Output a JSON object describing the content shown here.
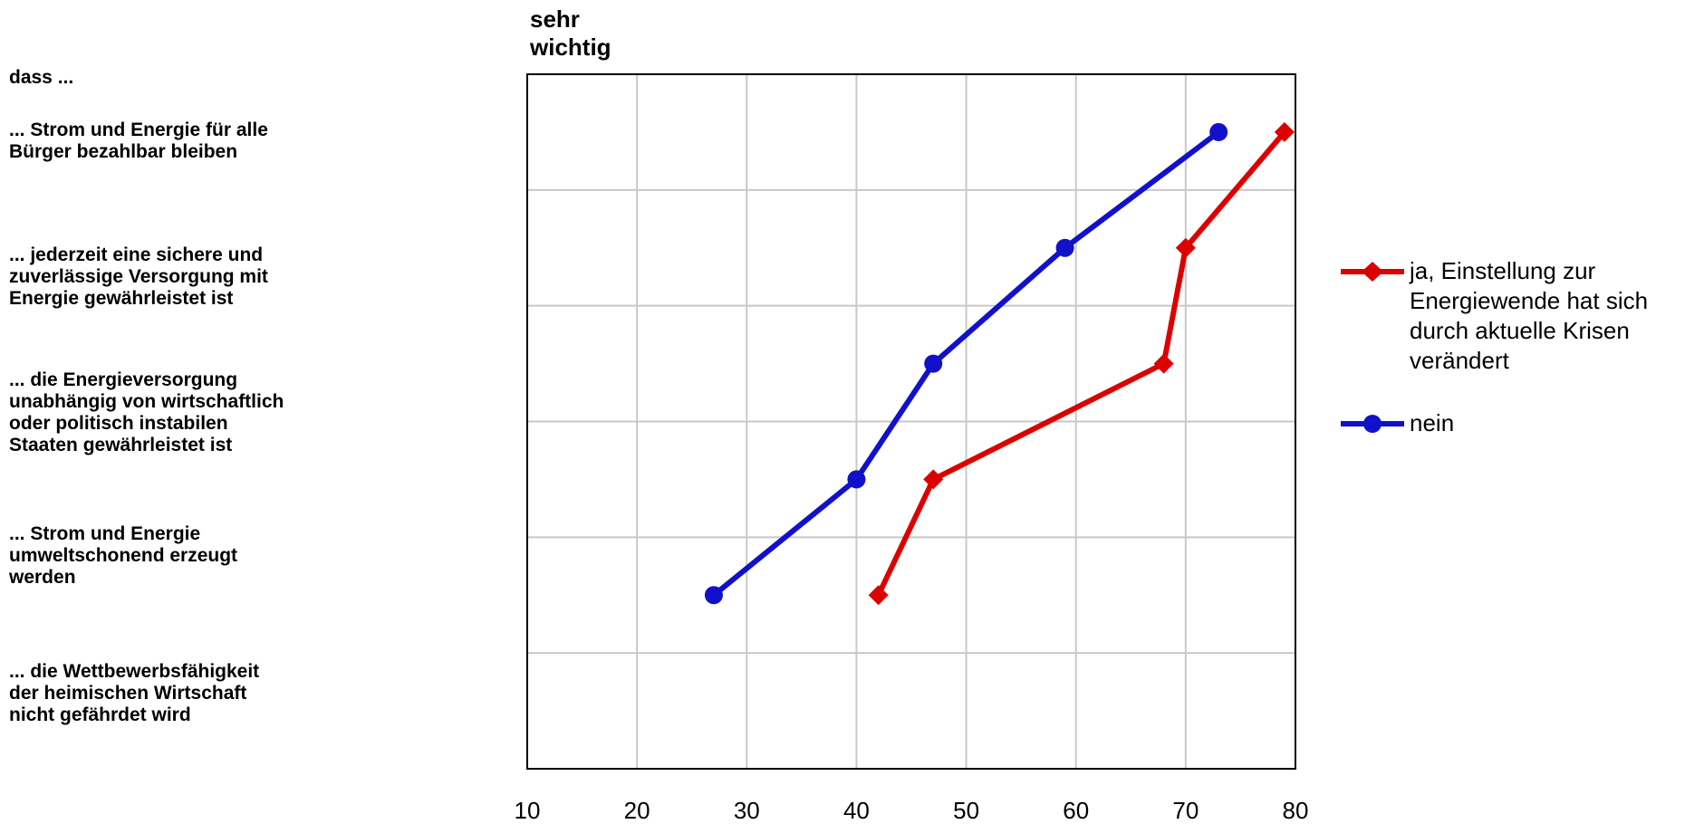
{
  "chart_data": {
    "type": "line",
    "intro": "dass ...",
    "scale_label": "sehr\nwichtig",
    "categories": [
      "... Strom und Energie für alle\nBürger bezahlbar bleiben",
      "... jederzeit eine sichere und\nzuverlässige Versorgung mit\nEnergie gewährleistet ist",
      "... die Energieversorgung\nunabhängig von wirtschaftlich\noder politisch instabilen\nStaaten gewährleistet ist",
      "... Strom und Energie\numweltschonend erzeugt\nwerden",
      "... die Wettbewerbsfähigkeit\nder heimischen Wirtschaft\nnicht gefährdet wird"
    ],
    "xlim": [
      10,
      80
    ],
    "xticks": [
      "10",
      "20",
      "30",
      "40",
      "50",
      "60",
      "70",
      "80"
    ],
    "grid": true,
    "legend_position": "right",
    "series": [
      {
        "name": "ja, Einstellung zur Energiewende hat sich durch aktuelle Krisen verändert",
        "color": "#dd0000",
        "marker": "diamond",
        "values": [
          79,
          70,
          68,
          47,
          42
        ]
      },
      {
        "name": "nein",
        "color": "#1111cc",
        "marker": "circle",
        "values": [
          73,
          59,
          47,
          40,
          27
        ]
      }
    ]
  }
}
